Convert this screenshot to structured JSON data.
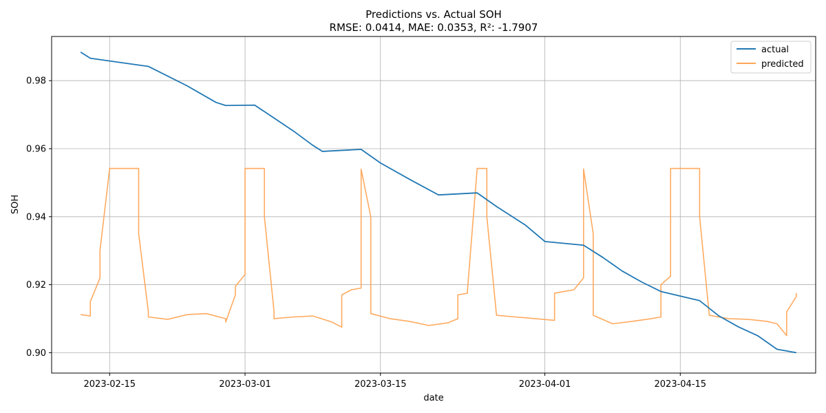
{
  "chart_data": {
    "type": "line",
    "title": "Predictions vs. Actual SOH",
    "subtitle": "RMSE: 0.0414, MAE: 0.0353, R²: -1.7907",
    "xlabel": "date",
    "ylabel": "SOH",
    "xlim": [
      "2023-02-09",
      "2023-04-29"
    ],
    "ylim": [
      0.894,
      0.993
    ],
    "x_ticks": [
      "2023-02-15",
      "2023-03-01",
      "2023-03-15",
      "2023-04-01",
      "2023-04-15"
    ],
    "y_ticks": [
      0.9,
      0.92,
      0.94,
      0.96,
      0.98
    ],
    "y_tick_labels": [
      "0.90",
      "0.92",
      "0.94",
      "0.96",
      "0.98"
    ],
    "grid": true,
    "legend_position": "top-right",
    "series": [
      {
        "name": "actual",
        "color": "#1f77b4",
        "points": [
          [
            "2023-02-12",
            0.9884
          ],
          [
            "2023-02-13",
            0.9866
          ],
          [
            "2023-02-19",
            0.9842
          ],
          [
            "2023-02-23",
            0.9785
          ],
          [
            "2023-02-26",
            0.9736
          ],
          [
            "2023-02-27",
            0.9727
          ],
          [
            "2023-03-02",
            0.9728
          ],
          [
            "2023-03-04",
            0.969
          ],
          [
            "2023-03-06",
            0.9652
          ],
          [
            "2023-03-08",
            0.961
          ],
          [
            "2023-03-09",
            0.9592
          ],
          [
            "2023-03-13",
            0.9598
          ],
          [
            "2023-03-15",
            0.9558
          ],
          [
            "2023-03-18",
            0.951
          ],
          [
            "2023-03-21",
            0.9464
          ],
          [
            "2023-03-25",
            0.947
          ],
          [
            "2023-03-27",
            0.943
          ],
          [
            "2023-03-30",
            0.9375
          ],
          [
            "2023-04-01",
            0.9327
          ],
          [
            "2023-04-05",
            0.9316
          ],
          [
            "2023-04-07",
            0.928
          ],
          [
            "2023-04-09",
            0.924
          ],
          [
            "2023-04-11",
            0.9208
          ],
          [
            "2023-04-13",
            0.918
          ],
          [
            "2023-04-17",
            0.9153
          ],
          [
            "2023-04-19",
            0.9108
          ],
          [
            "2023-04-21",
            0.9076
          ],
          [
            "2023-04-23",
            0.905
          ],
          [
            "2023-04-25",
            0.901
          ],
          [
            "2023-04-27",
            0.9
          ]
        ]
      },
      {
        "name": "predicted",
        "color": "#ffa556",
        "points": [
          [
            "2023-02-12",
            0.9112
          ],
          [
            "2023-02-13",
            0.9108
          ],
          [
            "2023-02-13",
            0.915
          ],
          [
            "2023-02-14",
            0.922
          ],
          [
            "2023-02-14",
            0.93
          ],
          [
            "2023-02-15",
            0.9542
          ],
          [
            "2023-02-17",
            0.9542
          ],
          [
            "2023-02-18",
            0.9542
          ],
          [
            "2023-02-18",
            0.935
          ],
          [
            "2023-02-19",
            0.912
          ],
          [
            "2023-02-19",
            0.9105
          ],
          [
            "2023-02-21",
            0.9098
          ],
          [
            "2023-02-23",
            0.9112
          ],
          [
            "2023-02-25",
            0.9115
          ],
          [
            "2023-02-27",
            0.91
          ],
          [
            "2023-02-27",
            0.909
          ],
          [
            "2023-02-28",
            0.917
          ],
          [
            "2023-02-28",
            0.9195
          ],
          [
            "2023-03-01",
            0.923
          ],
          [
            "2023-03-01",
            0.9542
          ],
          [
            "2023-03-03",
            0.9542
          ],
          [
            "2023-03-03",
            0.94
          ],
          [
            "2023-03-04",
            0.912
          ],
          [
            "2023-03-04",
            0.91
          ],
          [
            "2023-03-06",
            0.9105
          ],
          [
            "2023-03-08",
            0.9108
          ],
          [
            "2023-03-10",
            0.909
          ],
          [
            "2023-03-11",
            0.9075
          ],
          [
            "2023-03-11",
            0.917
          ],
          [
            "2023-03-12",
            0.9185
          ],
          [
            "2023-03-13",
            0.919
          ],
          [
            "2023-03-13",
            0.954
          ],
          [
            "2023-03-14",
            0.94
          ],
          [
            "2023-03-14",
            0.9115
          ],
          [
            "2023-03-16",
            0.91
          ],
          [
            "2023-03-18",
            0.9092
          ],
          [
            "2023-03-20",
            0.908
          ],
          [
            "2023-03-22",
            0.9088
          ],
          [
            "2023-03-23",
            0.91
          ],
          [
            "2023-03-23",
            0.917
          ],
          [
            "2023-03-24",
            0.9175
          ],
          [
            "2023-03-24",
            0.9185
          ],
          [
            "2023-03-25",
            0.9542
          ],
          [
            "2023-03-26",
            0.9542
          ],
          [
            "2023-03-26",
            0.94
          ],
          [
            "2023-03-27",
            0.911
          ],
          [
            "2023-03-29",
            0.9105
          ],
          [
            "2023-03-31",
            0.91
          ],
          [
            "2023-04-02",
            0.9095
          ],
          [
            "2023-04-02",
            0.9175
          ],
          [
            "2023-04-03",
            0.918
          ],
          [
            "2023-04-04",
            0.9185
          ],
          [
            "2023-04-05",
            0.922
          ],
          [
            "2023-04-05",
            0.954
          ],
          [
            "2023-04-06",
            0.935
          ],
          [
            "2023-04-06",
            0.911
          ],
          [
            "2023-04-08",
            0.9085
          ],
          [
            "2023-04-10",
            0.9092
          ],
          [
            "2023-04-12",
            0.91
          ],
          [
            "2023-04-13",
            0.9105
          ],
          [
            "2023-04-13",
            0.92
          ],
          [
            "2023-04-14",
            0.9225
          ],
          [
            "2023-04-14",
            0.9542
          ],
          [
            "2023-04-16",
            0.9542
          ],
          [
            "2023-04-17",
            0.9542
          ],
          [
            "2023-04-17",
            0.94
          ],
          [
            "2023-04-18",
            0.911
          ],
          [
            "2023-04-20",
            0.91
          ],
          [
            "2023-04-22",
            0.9098
          ],
          [
            "2023-04-24",
            0.9092
          ],
          [
            "2023-04-25",
            0.9085
          ],
          [
            "2023-04-26",
            0.905
          ],
          [
            "2023-04-26",
            0.912
          ],
          [
            "2023-04-27",
            0.9165
          ],
          [
            "2023-04-27",
            0.9175
          ]
        ]
      }
    ]
  }
}
